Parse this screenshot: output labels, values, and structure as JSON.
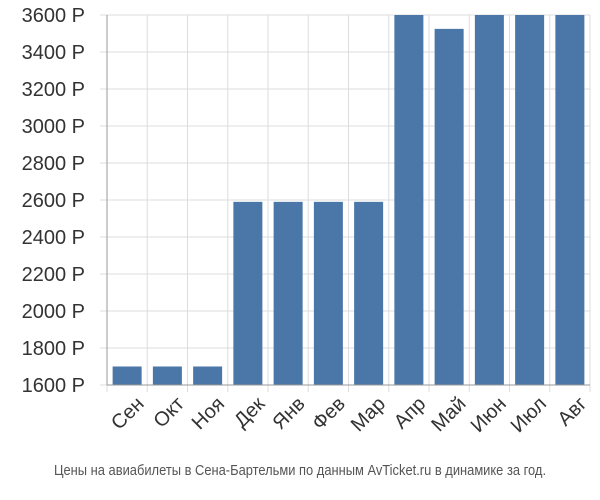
{
  "chart_data": {
    "type": "bar",
    "categories": [
      "Сен",
      "Окт",
      "Ноя",
      "Дек",
      "Янв",
      "Фев",
      "Мар",
      "Апр",
      "Май",
      "Июн",
      "Июл",
      "Авг"
    ],
    "values": [
      1700,
      1700,
      1700,
      2590,
      2590,
      2590,
      2590,
      3600,
      3525,
      3600,
      3600,
      3600
    ],
    "ylim": [
      1600,
      3600
    ],
    "yticks": [
      1600,
      1800,
      2000,
      2200,
      2400,
      2600,
      2800,
      3000,
      3200,
      3400,
      3600
    ],
    "ytick_labels": [
      "1600 Р",
      "1800 Р",
      "2000 Р",
      "2200 Р",
      "2400 Р",
      "2600 Р",
      "2800 Р",
      "3000 Р",
      "3200 Р",
      "3400 Р",
      "3600 Р"
    ],
    "grid": true,
    "colors": {
      "bar": "#4a76a8",
      "grid": "#dddddd",
      "axis": "#999999"
    }
  },
  "caption": "Цены на авиабилеты в Сена-Бартельми по данным AvTicket.ru в динамике за год."
}
